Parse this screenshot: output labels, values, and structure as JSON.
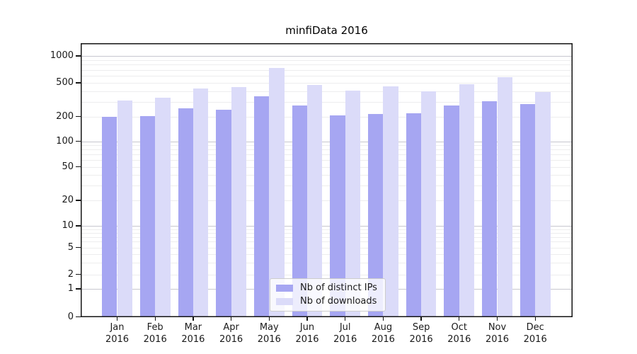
{
  "chart_data": {
    "type": "bar",
    "title": "minfiData 2016",
    "categories": [
      "Jan",
      "Feb",
      "Mar",
      "Apr",
      "May",
      "Jun",
      "Jul",
      "Aug",
      "Sep",
      "Oct",
      "Nov",
      "Dec"
    ],
    "year": "2016",
    "series": [
      {
        "name": "Nb of distinct IPs",
        "color": "#a6a6f2",
        "values": [
          197,
          201,
          252,
          241,
          345,
          269,
          208,
          213,
          218,
          272,
          301,
          279
        ]
      },
      {
        "name": "Nb of downloads",
        "color": "#dbdbf9",
        "values": [
          309,
          334,
          430,
          442,
          730,
          476,
          404,
          455,
          399,
          482,
          576,
          386
        ]
      }
    ],
    "yscale": "log-like with 0 baseline (symlog)",
    "yticks": [
      1000,
      500,
      200,
      100,
      50,
      20,
      10,
      5,
      2,
      1,
      0
    ],
    "ylim": [
      0,
      1400
    ],
    "xlabel": "",
    "ylabel": "",
    "grid": true,
    "legend_position": "lower center"
  }
}
